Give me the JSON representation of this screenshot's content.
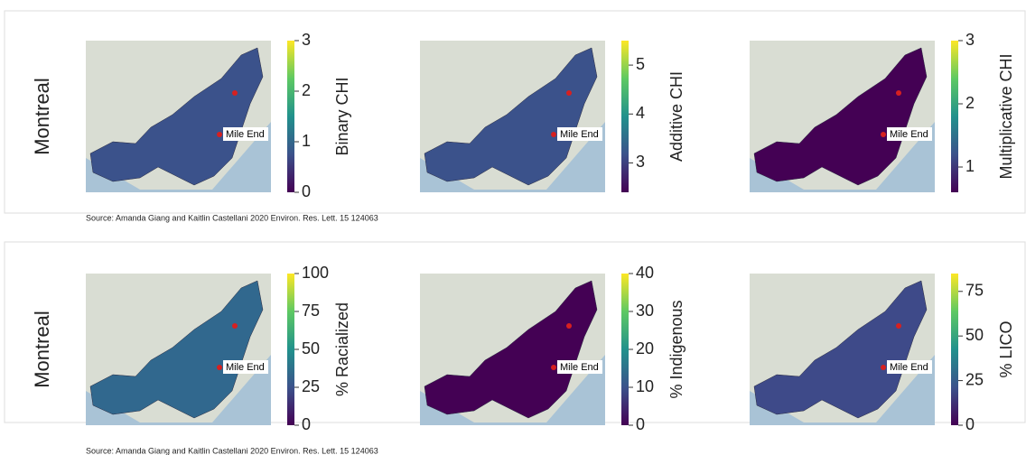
{
  "panels": [
    {
      "row_label": "Montreal",
      "maps": [
        {
          "colorbar_label": "Binary CHI",
          "annotation": "Mile End",
          "clim": [
            0,
            3
          ],
          "ticks": [
            0,
            1,
            2,
            3
          ]
        },
        {
          "colorbar_label": "Additive CHI",
          "annotation": "Mile End",
          "clim": [
            2.4,
            5.5
          ],
          "ticks": [
            3,
            4,
            5
          ]
        },
        {
          "colorbar_label": "Multiplicative CHI",
          "annotation": "Mile End",
          "clim": [
            0.6,
            3
          ],
          "ticks": [
            1,
            2,
            3
          ]
        }
      ],
      "source": "Source: Amanda Giang and Kaitlin Castellani 2020 Environ. Res. Lett. 15 124063"
    },
    {
      "row_label": "Montreal",
      "maps": [
        {
          "colorbar_label": "% Racialized",
          "annotation": "Mile End",
          "clim": [
            0,
            100
          ],
          "ticks": [
            0,
            25,
            50,
            75,
            100
          ]
        },
        {
          "colorbar_label": "% Indigenous",
          "annotation": "Mile End",
          "clim": [
            0,
            40
          ],
          "ticks": [
            0,
            10,
            20,
            30,
            40
          ]
        },
        {
          "colorbar_label": "% LICO",
          "annotation": "Mile End",
          "clim": [
            0,
            85
          ],
          "ticks": [
            0,
            25,
            50,
            75
          ]
        }
      ],
      "source": "Source: Amanda Giang and Kaitlin Castellani 2020 Environ. Res. Lett. 15 124063"
    }
  ]
}
